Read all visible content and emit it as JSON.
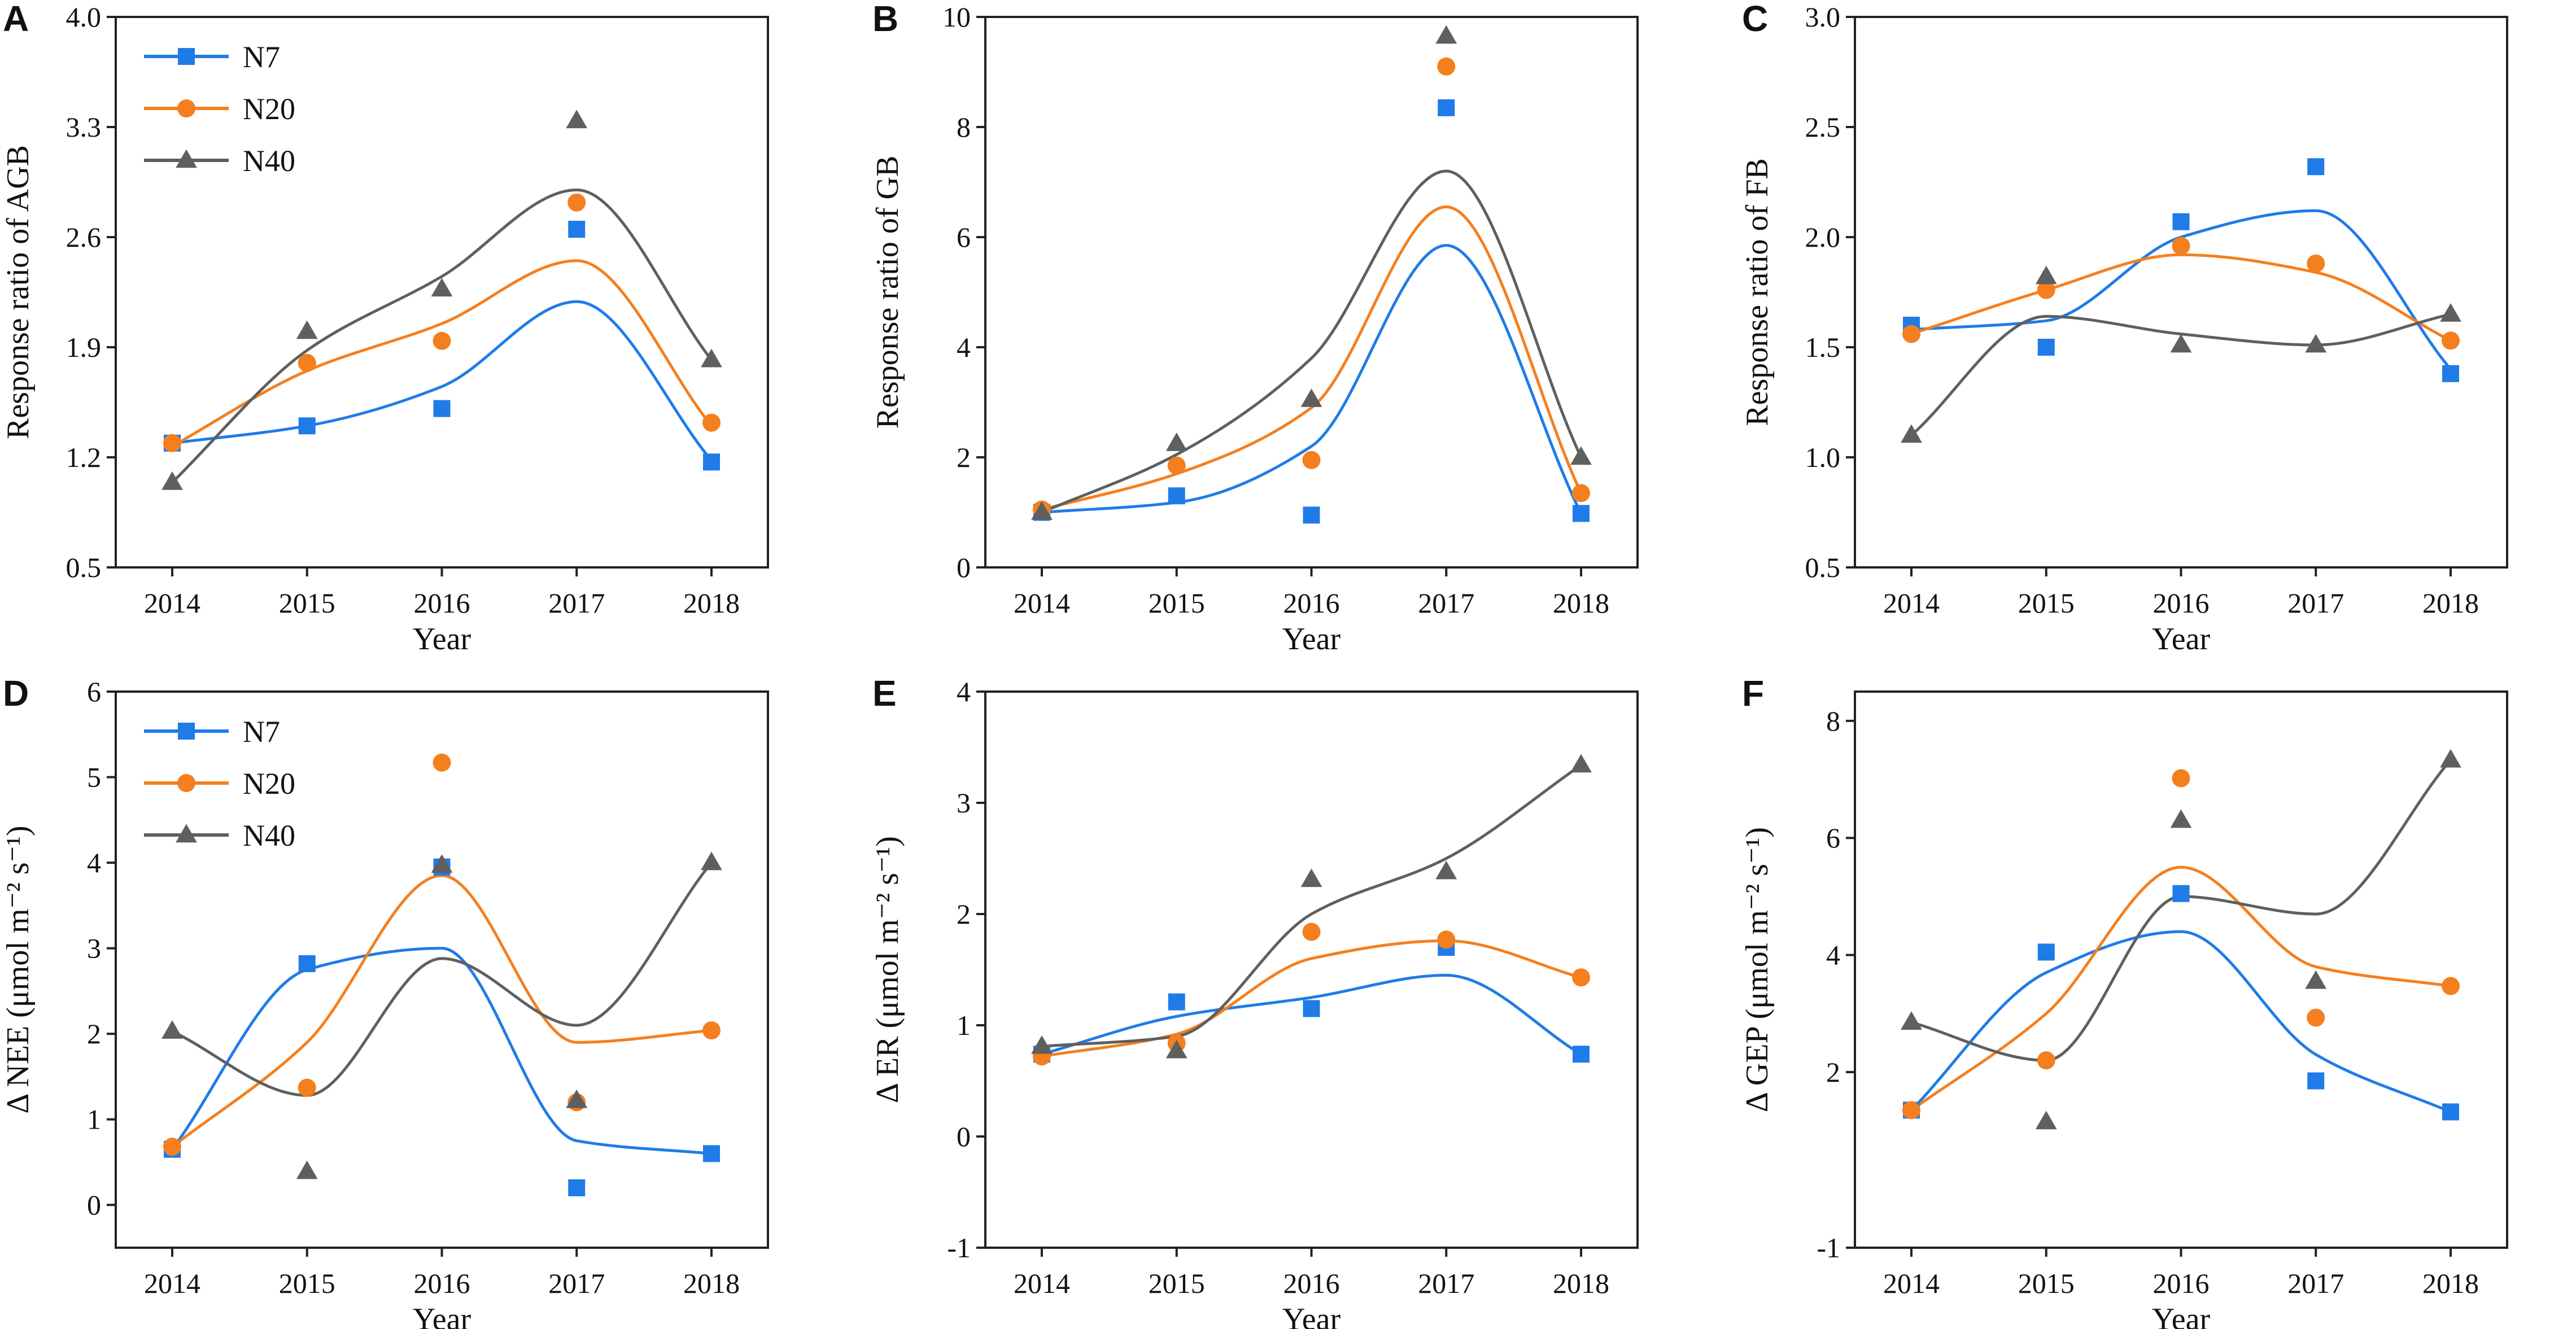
{
  "colors": {
    "N7": "#1f7be8",
    "N20": "#f47f1e",
    "N40": "#5f5f5f"
  },
  "chart_data": [
    {
      "type": "scatter",
      "panel": "A",
      "xlabel": "Year",
      "ylabel": "Response ratio of AGB",
      "categories": [
        "2014",
        "2015",
        "2016",
        "2017",
        "2018"
      ],
      "ylim": [
        0.5,
        4.0
      ],
      "yticks": [
        "0.5",
        "1.2",
        "1.9",
        "2.6",
        "3.3",
        "4.0"
      ],
      "legend": [
        "N7",
        "N20",
        "N40"
      ],
      "legend_position": "top-left",
      "series": [
        {
          "name": "N7",
          "marker": "square",
          "values": [
            1.29,
            1.4,
            1.51,
            2.65,
            1.17
          ],
          "fit": [
            1.29,
            1.4,
            1.65,
            2.19,
            1.18
          ]
        },
        {
          "name": "N20",
          "marker": "circle",
          "values": [
            1.29,
            1.8,
            1.94,
            2.82,
            1.42
          ],
          "fit": [
            1.27,
            1.75,
            2.05,
            2.45,
            1.4
          ]
        },
        {
          "name": "N40",
          "marker": "triangle",
          "values": [
            1.04,
            2.0,
            2.27,
            3.34,
            1.82
          ],
          "fit": [
            1.04,
            1.88,
            2.35,
            2.9,
            1.82
          ]
        }
      ]
    },
    {
      "type": "scatter",
      "panel": "B",
      "xlabel": "Year",
      "ylabel": "Response ratio of GB",
      "categories": [
        "2014",
        "2015",
        "2016",
        "2017",
        "2018"
      ],
      "ylim": [
        0,
        10
      ],
      "yticks": [
        "0",
        "2",
        "4",
        "6",
        "8",
        "10"
      ],
      "series": [
        {
          "name": "N7",
          "marker": "square",
          "values": [
            1.0,
            1.3,
            0.95,
            8.35,
            0.98
          ],
          "fit": [
            1.0,
            1.18,
            2.2,
            5.85,
            0.98
          ]
        },
        {
          "name": "N20",
          "marker": "circle",
          "values": [
            1.05,
            1.85,
            1.95,
            9.1,
            1.35
          ],
          "fit": [
            1.05,
            1.7,
            2.9,
            6.55,
            1.35
          ]
        },
        {
          "name": "N40",
          "marker": "triangle",
          "values": [
            1.0,
            2.25,
            3.05,
            9.65,
            2.0
          ],
          "fit": [
            1.0,
            2.05,
            3.8,
            7.2,
            2.0
          ]
        }
      ]
    },
    {
      "type": "scatter",
      "panel": "C",
      "xlabel": "Year",
      "ylabel": "Response ratio of FB",
      "categories": [
        "2014",
        "2015",
        "2016",
        "2017",
        "2018"
      ],
      "ylim": [
        0.5,
        3.0
      ],
      "yticks": [
        "0.5",
        "1.0",
        "1.5",
        "2.0",
        "2.5",
        "3.0"
      ],
      "series": [
        {
          "name": "N7",
          "marker": "square",
          "values": [
            1.6,
            1.5,
            2.07,
            2.32,
            1.38
          ],
          "fit": [
            1.58,
            1.62,
            2.0,
            2.12,
            1.4
          ]
        },
        {
          "name": "N20",
          "marker": "circle",
          "values": [
            1.56,
            1.76,
            1.96,
            1.88,
            1.53
          ],
          "fit": [
            1.56,
            1.76,
            1.92,
            1.84,
            1.53
          ]
        },
        {
          "name": "N40",
          "marker": "triangle",
          "values": [
            1.1,
            1.82,
            1.51,
            1.51,
            1.65
          ],
          "fit": [
            1.1,
            1.64,
            1.56,
            1.51,
            1.65
          ]
        }
      ]
    },
    {
      "type": "scatter",
      "panel": "D",
      "xlabel": "Year",
      "ylabel": "Δ NEE (μmol m⁻² s⁻¹)",
      "categories": [
        "2014",
        "2015",
        "2016",
        "2017",
        "2018"
      ],
      "ylim": [
        -0.5,
        6
      ],
      "yticks": [
        "0",
        "1",
        "2",
        "3",
        "4",
        "5",
        "6"
      ],
      "legend": [
        "N7",
        "N20",
        "N40"
      ],
      "legend_position": "top-left",
      "series": [
        {
          "name": "N7",
          "marker": "square",
          "values": [
            0.65,
            2.82,
            3.95,
            0.2,
            0.6
          ],
          "fit": [
            0.65,
            2.75,
            3.0,
            0.75,
            0.6
          ]
        },
        {
          "name": "N20",
          "marker": "circle",
          "values": [
            0.68,
            1.37,
            5.17,
            1.2,
            2.04
          ],
          "fit": [
            0.68,
            1.9,
            3.85,
            1.9,
            2.04
          ]
        },
        {
          "name": "N40",
          "marker": "triangle",
          "values": [
            2.03,
            0.39,
            3.97,
            1.22,
            4.0
          ],
          "fit": [
            2.03,
            1.28,
            2.88,
            2.1,
            4.0
          ]
        }
      ]
    },
    {
      "type": "scatter",
      "panel": "E",
      "xlabel": "Year",
      "ylabel": "Δ ER (μmol m⁻² s⁻¹)",
      "categories": [
        "2014",
        "2015",
        "2016",
        "2017",
        "2018"
      ],
      "ylim": [
        -1,
        4
      ],
      "yticks": [
        "-1",
        "0",
        "1",
        "2",
        "3",
        "4"
      ],
      "series": [
        {
          "name": "N7",
          "marker": "square",
          "values": [
            0.74,
            1.21,
            1.15,
            1.7,
            0.74
          ],
          "fit": [
            0.74,
            1.08,
            1.25,
            1.45,
            0.74
          ]
        },
        {
          "name": "N20",
          "marker": "circle",
          "values": [
            0.72,
            0.84,
            1.84,
            1.77,
            1.43
          ],
          "fit": [
            0.72,
            0.92,
            1.6,
            1.76,
            1.43
          ]
        },
        {
          "name": "N40",
          "marker": "triangle",
          "values": [
            0.81,
            0.77,
            2.31,
            2.38,
            3.34
          ],
          "fit": [
            0.81,
            0.9,
            2.0,
            2.5,
            3.34
          ]
        }
      ]
    },
    {
      "type": "scatter",
      "panel": "F",
      "xlabel": "Year",
      "ylabel": "Δ GEP (μmol m⁻² s⁻¹)",
      "categories": [
        "2014",
        "2015",
        "2016",
        "2017",
        "2018"
      ],
      "ylim": [
        -1,
        8.5
      ],
      "yticks": [
        "-1",
        "2",
        "4",
        "6",
        "8"
      ],
      "series": [
        {
          "name": "N7",
          "marker": "square",
          "values": [
            1.35,
            4.05,
            5.05,
            1.85,
            1.32
          ],
          "fit": [
            1.35,
            3.7,
            4.4,
            2.3,
            1.32
          ]
        },
        {
          "name": "N20",
          "marker": "circle",
          "values": [
            1.35,
            2.2,
            7.02,
            2.93,
            3.47
          ],
          "fit": [
            1.35,
            3.0,
            5.5,
            3.8,
            3.47
          ]
        },
        {
          "name": "N40",
          "marker": "triangle",
          "values": [
            2.85,
            1.15,
            6.3,
            3.55,
            7.33
          ],
          "fit": [
            2.85,
            2.2,
            5.0,
            4.7,
            7.33
          ]
        }
      ]
    }
  ]
}
